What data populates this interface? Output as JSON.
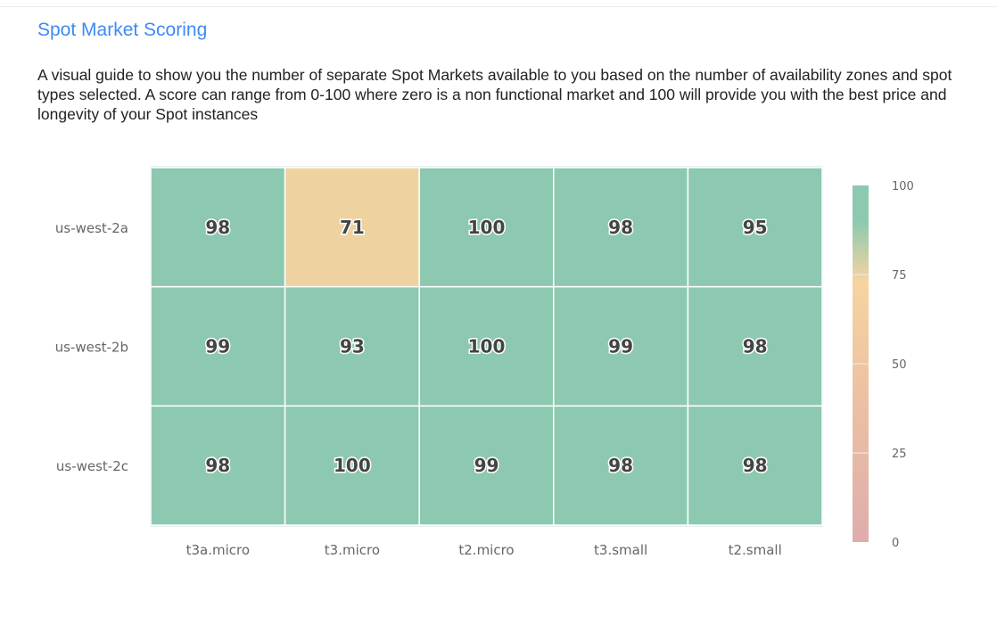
{
  "title": "Spot Market Scoring",
  "description": "A visual guide to show you the number of separate Spot Markets available to you based on the number of availability zones and spot types selected. A score can range from 0-100 where zero is a non functional market and 100 will provide you with the best price and longevity of your Spot instances",
  "chart_data": {
    "type": "heatmap",
    "x_categories": [
      "t3a.micro",
      "t3.micro",
      "t2.micro",
      "t3.small",
      "t2.small"
    ],
    "y_categories": [
      "us-west-2a",
      "us-west-2b",
      "us-west-2c"
    ],
    "values": [
      [
        98,
        71,
        100,
        98,
        95
      ],
      [
        99,
        93,
        100,
        99,
        98
      ],
      [
        98,
        100,
        99,
        98,
        98
      ]
    ],
    "colorbar": {
      "range": [
        0,
        100
      ],
      "ticks": [
        "0",
        "25",
        "50",
        "75",
        "100"
      ],
      "colors": {
        "0": "#dfacac",
        "50": "#efc6a2",
        "70": "#f3d4a0",
        "90": "#8dc9b0",
        "100": "#8dc9b0"
      }
    }
  }
}
